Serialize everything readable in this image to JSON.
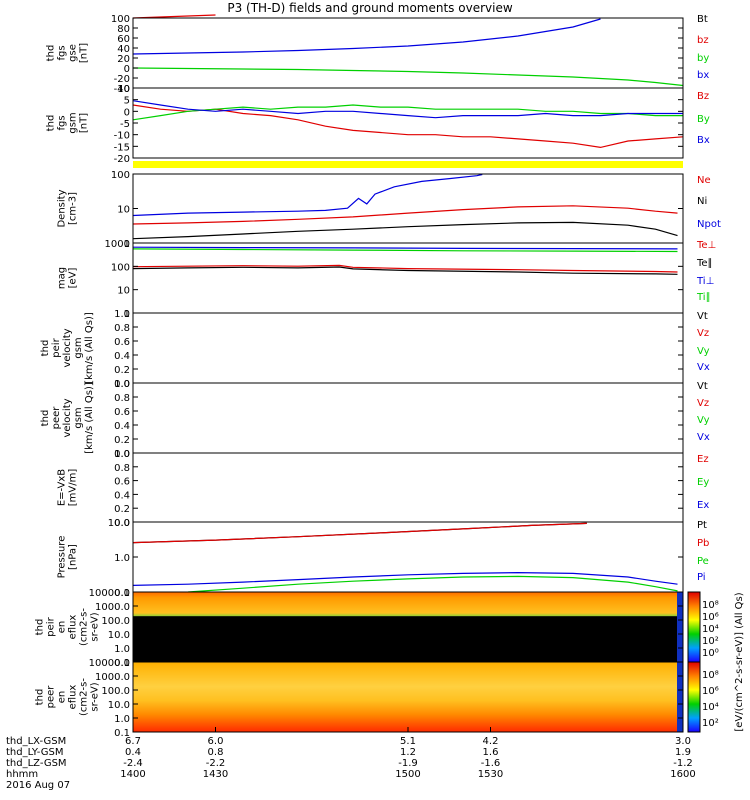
{
  "title": "P3 (TH-D) fields and ground moments overview",
  "colors": {
    "black": "#000000",
    "red": "#e00000",
    "green": "#00d000",
    "blue": "#0000e0",
    "yellow": "#ffff00"
  },
  "chart_data": [
    {
      "type": "line",
      "panel": "fgs_gse",
      "ylabel_lines": [
        "thd",
        "fgs",
        "gse",
        "[nT]"
      ],
      "yticks": [
        "100",
        "80",
        "60",
        "40",
        "20",
        "0",
        "-20",
        "-40"
      ],
      "ylim": [
        -40,
        100
      ],
      "legend": [
        {
          "label": "Bt",
          "color": "black"
        },
        {
          "label": "bz",
          "color": "red"
        },
        {
          "label": "by",
          "color": "green"
        },
        {
          "label": "bx",
          "color": "blue"
        }
      ],
      "series": [
        {
          "name": "bz",
          "color": "red",
          "x": [
            1400,
            1410,
            1420,
            1430
          ],
          "y": [
            100,
            102,
            104,
            106
          ]
        },
        {
          "name": "bx",
          "color": "blue",
          "x": [
            1400,
            1420,
            1440,
            1460,
            1480,
            1500,
            1520,
            1540,
            1560,
            1570
          ],
          "y": [
            28,
            30,
            32,
            35,
            39,
            44,
            52,
            64,
            82,
            98
          ]
        },
        {
          "name": "by",
          "color": "green",
          "x": [
            1400,
            1420,
            1440,
            1460,
            1480,
            1500,
            1520,
            1540,
            1560,
            1580,
            1590,
            1600
          ],
          "y": [
            0,
            -1,
            -2,
            -3,
            -5,
            -7,
            -10,
            -14,
            -18,
            -24,
            -29,
            -35
          ]
        }
      ]
    },
    {
      "type": "line",
      "panel": "fgs_gsm",
      "ylabel_lines": [
        "thd",
        "fgs",
        "gsm",
        "[nT]"
      ],
      "yticks": [
        "10",
        "5",
        "0",
        "-5",
        "-10",
        "-15",
        "-20"
      ],
      "ylim": [
        -23,
        10
      ],
      "legend": [
        {
          "label": "Bz",
          "color": "red"
        },
        {
          "label": "By",
          "color": "green"
        },
        {
          "label": "Bx",
          "color": "blue"
        }
      ],
      "series": [
        {
          "name": "Bz",
          "color": "red",
          "x": [
            1400,
            1410,
            1420,
            1430,
            1440,
            1450,
            1460,
            1470,
            1480,
            1490,
            1500,
            1510,
            1520,
            1530,
            1540,
            1550,
            1560,
            1570,
            1580,
            1590,
            1600
          ],
          "y": [
            2,
            0,
            -1,
            0,
            -2,
            -3,
            -5,
            -8,
            -10,
            -11,
            -12,
            -12,
            -13,
            -13,
            -14,
            -15,
            -16,
            -18,
            -15,
            -14,
            -13
          ]
        },
        {
          "name": "By",
          "color": "green",
          "x": [
            1400,
            1410,
            1420,
            1430,
            1440,
            1450,
            1460,
            1470,
            1480,
            1490,
            1500,
            1510,
            1520,
            1530,
            1540,
            1550,
            1560,
            1570,
            1580,
            1590,
            1600
          ],
          "y": [
            -5,
            -3,
            -1,
            0,
            1,
            0,
            1,
            1,
            2,
            1,
            1,
            0,
            0,
            0,
            0,
            -1,
            -1,
            -2,
            -2,
            -3,
            -3
          ]
        },
        {
          "name": "Bx",
          "color": "blue",
          "x": [
            1400,
            1410,
            1420,
            1430,
            1440,
            1450,
            1460,
            1470,
            1480,
            1490,
            1500,
            1510,
            1520,
            1530,
            1540,
            1550,
            1560,
            1570,
            1580,
            1590,
            1600
          ],
          "y": [
            4,
            2,
            0,
            -1,
            0,
            -1,
            -2,
            -1,
            -1,
            -2,
            -3,
            -4,
            -3,
            -3,
            -3,
            -2,
            -3,
            -3,
            -2,
            -2,
            -2
          ]
        }
      ]
    },
    {
      "type": "line",
      "panel": "density",
      "log": true,
      "ylabel_lines": [
        "Density",
        "[cm-3]"
      ],
      "yticks": [
        "100",
        "10",
        "1"
      ],
      "ylim": [
        0.3,
        200
      ],
      "legend": [
        {
          "label": "Ne",
          "color": "red"
        },
        {
          "label": "Ni",
          "color": "black"
        },
        {
          "label": "Npot",
          "color": "blue"
        }
      ],
      "series": [
        {
          "name": "Npot",
          "color": "blue",
          "x": [
            1400,
            1420,
            1440,
            1460,
            1470,
            1478,
            1482,
            1485,
            1488,
            1495,
            1505,
            1515,
            1525,
            1527
          ],
          "y": [
            4,
            5,
            5.5,
            6,
            6.5,
            8,
            20,
            12,
            30,
            60,
            100,
            130,
            170,
            190
          ]
        },
        {
          "name": "Ne",
          "color": "red",
          "x": [
            1400,
            1420,
            1440,
            1460,
            1480,
            1500,
            1520,
            1540,
            1560,
            1580,
            1590,
            1598
          ],
          "y": [
            1.8,
            2.0,
            2.3,
            2.8,
            3.5,
            5,
            7,
            9,
            10,
            8,
            6,
            5
          ]
        },
        {
          "name": "Ni",
          "color": "black",
          "x": [
            1400,
            1420,
            1440,
            1460,
            1480,
            1500,
            1520,
            1540,
            1560,
            1580,
            1590,
            1598
          ],
          "y": [
            0.45,
            0.55,
            0.7,
            0.9,
            1.1,
            1.4,
            1.7,
            2.0,
            2.1,
            1.6,
            1.1,
            0.6
          ]
        }
      ]
    },
    {
      "type": "line",
      "panel": "temperature",
      "log": true,
      "ylabel_lines": [
        "mag",
        "[eV]"
      ],
      "yticks": [
        "1000",
        "100",
        "10",
        "1"
      ],
      "ylim": [
        0.7,
        6000
      ],
      "legend": [
        {
          "label": "Te⊥",
          "color": "red"
        },
        {
          "label": "Te∥",
          "color": "black"
        },
        {
          "label": "Ti⊥",
          "color": "blue"
        },
        {
          "label": "Ti∥",
          "color": "green"
        }
      ],
      "series": [
        {
          "name": "Ti⊥",
          "color": "blue",
          "x": [
            1400,
            1440,
            1480,
            1520,
            1560,
            1598
          ],
          "y": [
            3500,
            3300,
            3200,
            3000,
            2900,
            2800
          ]
        },
        {
          "name": "Ti∥",
          "color": "green",
          "x": [
            1400,
            1440,
            1480,
            1520,
            1560,
            1598
          ],
          "y": [
            2800,
            2600,
            2400,
            2200,
            2100,
            2000
          ]
        },
        {
          "name": "Te⊥",
          "color": "red",
          "x": [
            1400,
            1420,
            1440,
            1460,
            1475,
            1480,
            1500,
            1540,
            1560,
            1590,
            1598
          ],
          "y": [
            280,
            300,
            320,
            300,
            330,
            260,
            220,
            190,
            170,
            150,
            140
          ]
        },
        {
          "name": "Te∥",
          "color": "black",
          "x": [
            1400,
            1420,
            1440,
            1460,
            1475,
            1480,
            1500,
            1540,
            1560,
            1590,
            1598
          ],
          "y": [
            220,
            240,
            260,
            240,
            270,
            210,
            170,
            140,
            120,
            110,
            105
          ]
        }
      ]
    },
    {
      "type": "line",
      "panel": "peir_velocity",
      "ylabel_lines": [
        "thd",
        "peir",
        "velocity",
        "gsm",
        "[km/s (All Qs)]"
      ],
      "yticks": [
        "1.0",
        "0.8",
        "0.6",
        "0.4",
        "0.2",
        "0.0"
      ],
      "ylim": [
        0,
        1
      ],
      "legend": [
        {
          "label": "Vt",
          "color": "black"
        },
        {
          "label": "Vz",
          "color": "red"
        },
        {
          "label": "Vy",
          "color": "green"
        },
        {
          "label": "Vx",
          "color": "blue"
        }
      ],
      "series": []
    },
    {
      "type": "line",
      "panel": "peer_velocity",
      "ylabel_lines": [
        "thd",
        "peer",
        "velocity",
        "gsm",
        "[km/s (All Qs)]"
      ],
      "yticks": [
        "1.0",
        "0.8",
        "0.6",
        "0.4",
        "0.2",
        "0.0"
      ],
      "ylim": [
        0,
        1
      ],
      "legend": [
        {
          "label": "Vt",
          "color": "black"
        },
        {
          "label": "Vz",
          "color": "red"
        },
        {
          "label": "Vy",
          "color": "green"
        },
        {
          "label": "Vx",
          "color": "blue"
        }
      ],
      "series": []
    },
    {
      "type": "line",
      "panel": "efield",
      "ylabel_lines": [
        "E=-VxB",
        "[mV/m]"
      ],
      "yticks": [
        "1.0",
        "0.8",
        "0.6",
        "0.4",
        "0.2",
        "0.0"
      ],
      "ylim": [
        0,
        1
      ],
      "legend": [
        {
          "label": "Ez",
          "color": "red"
        },
        {
          "label": "Ey",
          "color": "green"
        },
        {
          "label": "Ex",
          "color": "blue"
        }
      ],
      "series": []
    },
    {
      "type": "line",
      "panel": "pressure",
      "log": true,
      "ylabel_lines": [
        "Pressure",
        "[nPa]"
      ],
      "yticks": [
        "10.0",
        "1.0",
        "0.1"
      ],
      "ylim": [
        0.05,
        25
      ],
      "legend": [
        {
          "label": "Pt",
          "color": "black"
        },
        {
          "label": "Pb",
          "color": "red"
        },
        {
          "label": "Pe",
          "color": "green"
        },
        {
          "label": "Pi",
          "color": "blue"
        }
      ],
      "series": [
        {
          "name": "Pt",
          "color": "black",
          "x": [
            1400,
            1430,
            1460,
            1490,
            1520,
            1545,
            1565
          ],
          "y": [
            4,
            5,
            6.8,
            9.5,
            13.5,
            18.5,
            22
          ]
        },
        {
          "name": "Pb",
          "color": "red",
          "x": [
            1400,
            1430,
            1460,
            1490,
            1520,
            1545,
            1565
          ],
          "y": [
            4,
            5,
            6.8,
            9.5,
            13.5,
            18.5,
            22
          ]
        },
        {
          "name": "Pi",
          "color": "blue",
          "x": [
            1400,
            1420,
            1440,
            1460,
            1480,
            1500,
            1520,
            1540,
            1560,
            1580,
            1590,
            1598
          ],
          "y": [
            0.09,
            0.1,
            0.12,
            0.15,
            0.19,
            0.23,
            0.26,
            0.28,
            0.26,
            0.19,
            0.13,
            0.1
          ]
        },
        {
          "name": "Pe",
          "color": "green",
          "x": [
            1400,
            1420,
            1440,
            1460,
            1480,
            1500,
            1520,
            1540,
            1560,
            1580,
            1590,
            1598
          ],
          "y": [
            0.045,
            0.05,
            0.07,
            0.1,
            0.13,
            0.16,
            0.19,
            0.2,
            0.18,
            0.12,
            0.08,
            0.055
          ]
        }
      ]
    },
    {
      "type": "heatmap",
      "panel": "peir_energy",
      "ylabel_lines": [
        "thd",
        "peir",
        "en",
        "eflux",
        "(cm2-s-",
        "sr-eV)"
      ],
      "yticks": [
        "10000.0",
        "1000.0",
        "100.0",
        "10.0",
        "1.0",
        "0.1"
      ]
    },
    {
      "type": "heatmap",
      "panel": "peer_energy",
      "ylabel_lines": [
        "thd",
        "peer",
        "en",
        "eflux",
        "(cm2-s-",
        "sr-eV)"
      ],
      "yticks": [
        "10000.0",
        "1000.0",
        "100.0",
        "10.0",
        "1.0",
        "0.1"
      ]
    }
  ],
  "colorbar": {
    "ticks": [
      "10⁸",
      "10⁶",
      "10⁴",
      "10²",
      "10⁰"
    ],
    "ticks2": [
      "10⁸",
      "10⁶",
      "10⁴",
      "10²"
    ],
    "label": "[eV/(cm^2-s-sr-eV)] (All Qs)"
  },
  "xaxis": {
    "rows": [
      {
        "label": "thd_LX-GSM",
        "values": [
          "6.7",
          "6.0",
          "5.1",
          "4.2",
          "3.0"
        ]
      },
      {
        "label": "thd_LY-GSM",
        "values": [
          "0.4",
          "0.8",
          "1.2",
          "1.6",
          "1.9"
        ]
      },
      {
        "label": "thd_LZ-GSM",
        "values": [
          "-2.4",
          "-2.2",
          "-1.9",
          "-1.6",
          "-1.2"
        ]
      },
      {
        "label": "hhmm",
        "values": [
          "1400",
          "1430",
          "1500",
          "1530",
          "1600"
        ]
      }
    ],
    "date": "2016 Aug 07"
  }
}
